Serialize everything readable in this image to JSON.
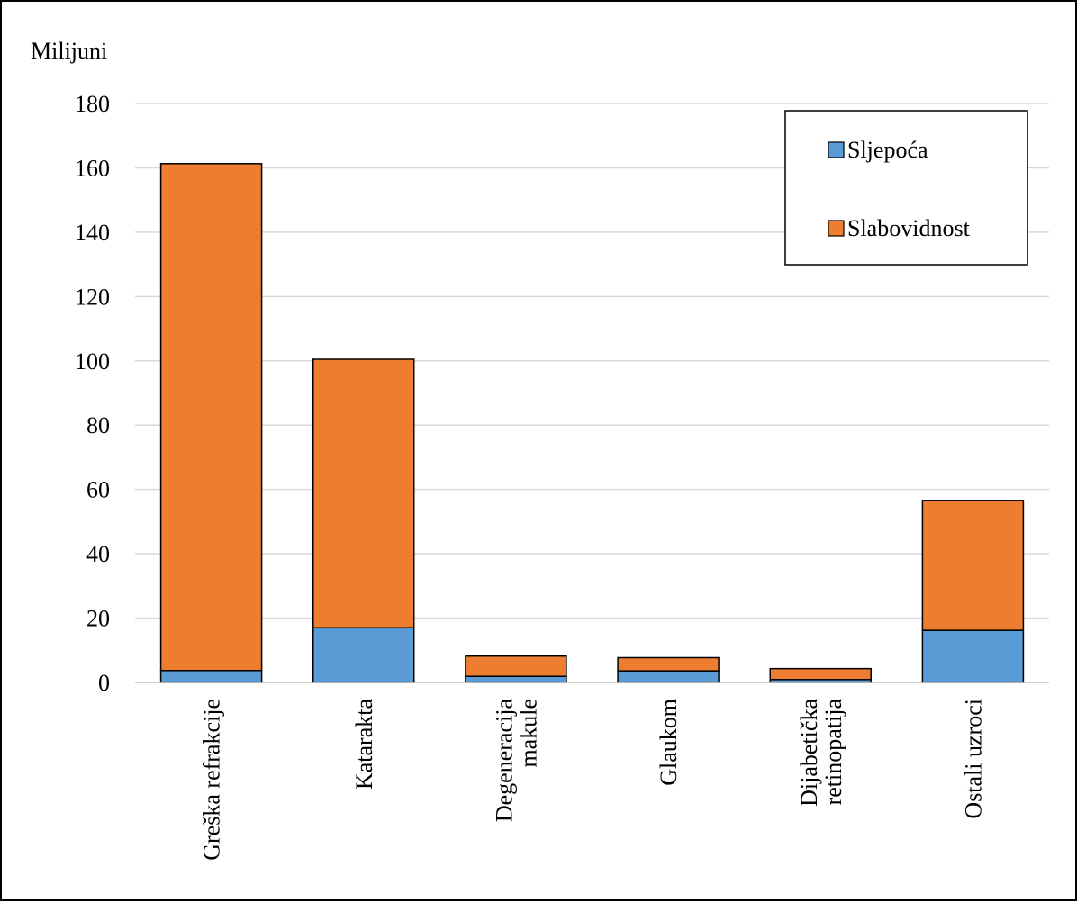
{
  "chart_data": {
    "type": "bar",
    "stacked": true,
    "ylabel": "Milijuni",
    "ylim": [
      0,
      180
    ],
    "yticks": [
      0,
      20,
      40,
      60,
      80,
      100,
      120,
      140,
      160,
      180
    ],
    "grid": true,
    "legend_position": "top-right",
    "categories": [
      [
        "Greška refrakcije"
      ],
      [
        "Katarakta"
      ],
      [
        "Degeneracija",
        "makule"
      ],
      [
        "Glaukom"
      ],
      [
        "Dijabetička",
        "retinopatija"
      ],
      [
        "Ostali uzroci"
      ]
    ],
    "series": [
      {
        "name": "Sljepoća",
        "color": "#5b9bd5",
        "values": [
          3.7,
          17.0,
          1.9,
          3.6,
          0.9,
          16.2
        ]
      },
      {
        "name": "Slabovidnost",
        "color": "#ed7d31",
        "values": [
          157.6,
          83.5,
          6.3,
          4.1,
          3.4,
          40.4
        ]
      }
    ]
  }
}
